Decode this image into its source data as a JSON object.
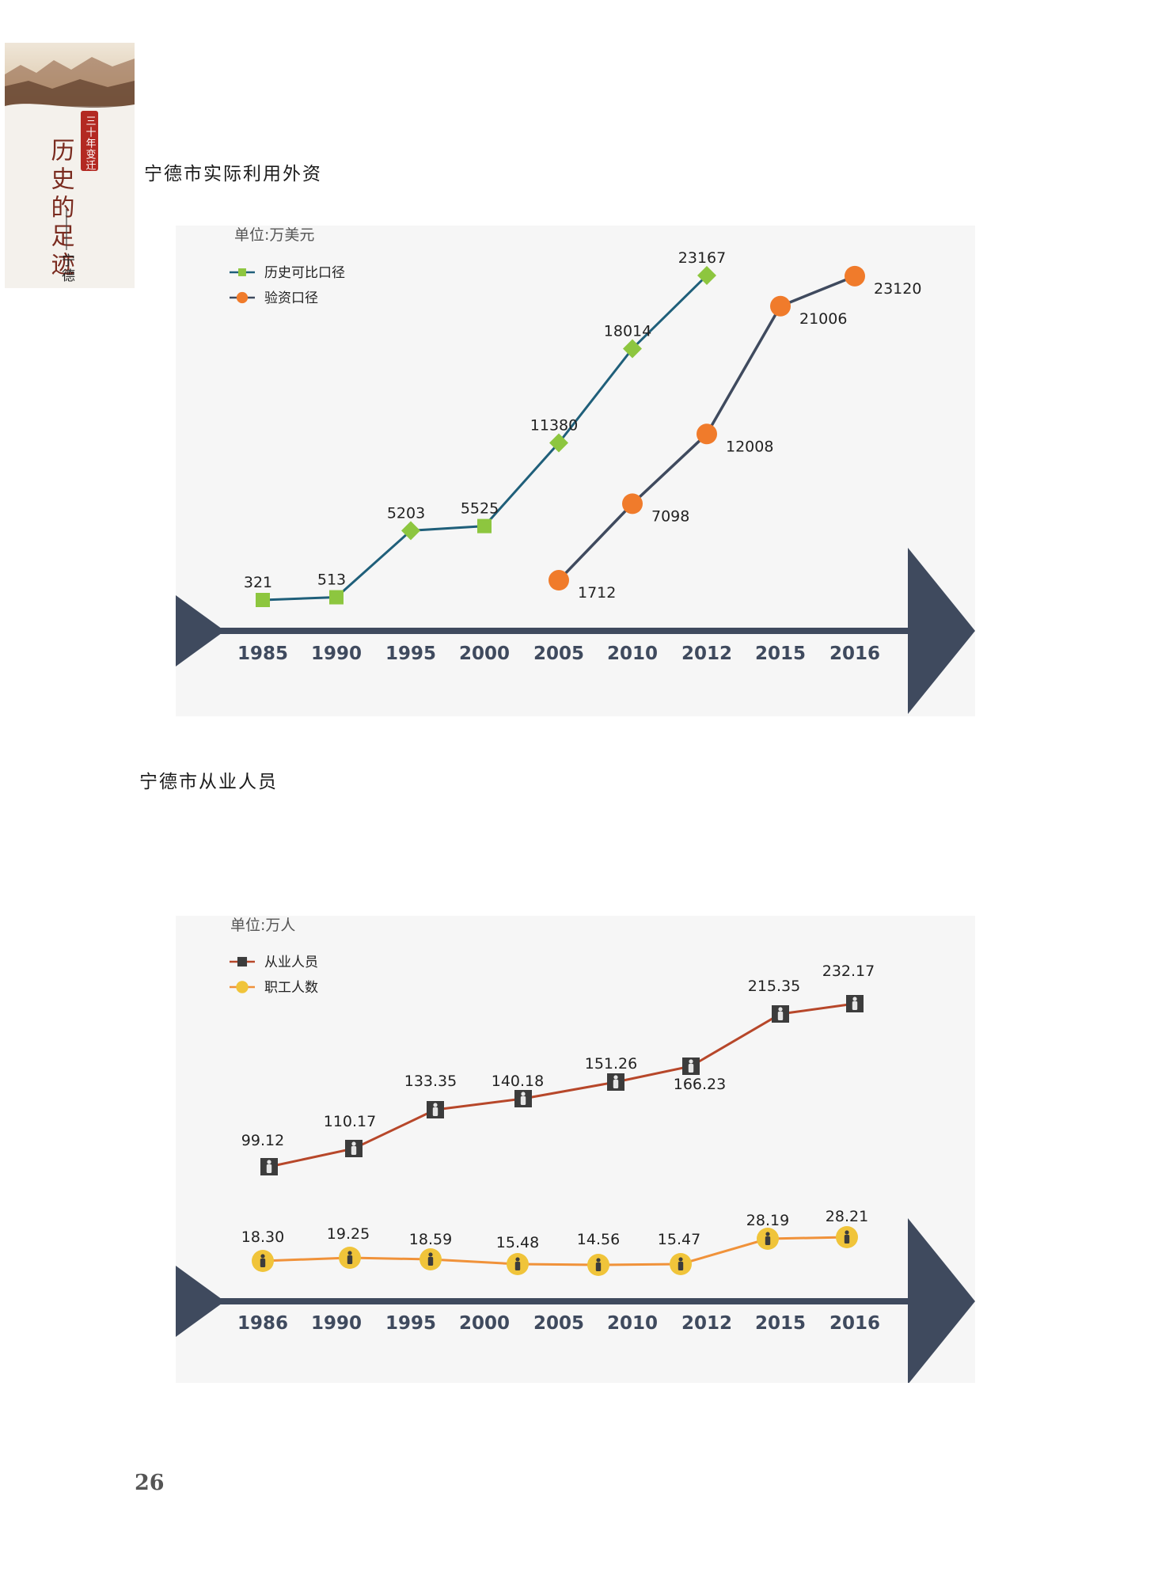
{
  "emblem": {
    "title": "历史的足迹",
    "badge": "三十年变迁",
    "place": "宁德"
  },
  "sections": [
    {
      "title": "宁德市实际利用外资"
    },
    {
      "title": "宁德市从业人员"
    }
  ],
  "page_number": "26",
  "colors": {
    "axis": "#3f4a5e",
    "panel_bg": "#f6f6f6",
    "series1_line": "#1f5f7a",
    "series1_marker": "#8dc63f",
    "series2_line": "#3f4a5e",
    "series2_marker": "#f07b2b",
    "workers_line": "#b7472a",
    "workers_marker": "#3c3c3c",
    "employees_line": "#f0923a",
    "employees_marker": "#f0c43a"
  },
  "chart_data": [
    {
      "type": "line",
      "unit_label": "单位:万美元",
      "categories": [
        "1985",
        "1990",
        "1995",
        "2000",
        "2005",
        "2010",
        "2012",
        "2015",
        "2016"
      ],
      "series": [
        {
          "name": "历史可比口径",
          "marker": "square-diamond",
          "values": [
            321,
            513,
            5203,
            5525,
            11380,
            18014,
            23167,
            null,
            null
          ]
        },
        {
          "name": "验资口径",
          "marker": "circle",
          "values": [
            null,
            null,
            null,
            null,
            1712,
            7098,
            12008,
            21006,
            23120
          ]
        }
      ],
      "legend": "top-left",
      "grid": false
    },
    {
      "type": "line",
      "unit_label": "单位:万人",
      "categories": [
        "1986",
        "1990",
        "1995",
        "2000",
        "2005",
        "2010",
        "2012",
        "2015",
        "2016"
      ],
      "series": [
        {
          "name": "从业人员",
          "marker": "person-square",
          "values": [
            99.12,
            110.17,
            133.35,
            140.18,
            151.26,
            166.23,
            166.23,
            215.35,
            232.17
          ],
          "labels": [
            "99.12",
            "110.17",
            "133.35",
            "140.18",
            "151.26",
            "",
            "166.23",
            "215.35",
            "232.17"
          ]
        },
        {
          "name": "职工人数",
          "marker": "person-circle",
          "values": [
            18.3,
            19.25,
            18.59,
            15.48,
            14.56,
            15.47,
            15.47,
            28.19,
            28.21
          ],
          "labels": [
            "18.30",
            "19.25",
            "18.59",
            "15.48",
            "14.56",
            "",
            "15.47",
            "28.19",
            "28.21"
          ]
        }
      ],
      "legend": "top-left",
      "grid": false
    }
  ]
}
